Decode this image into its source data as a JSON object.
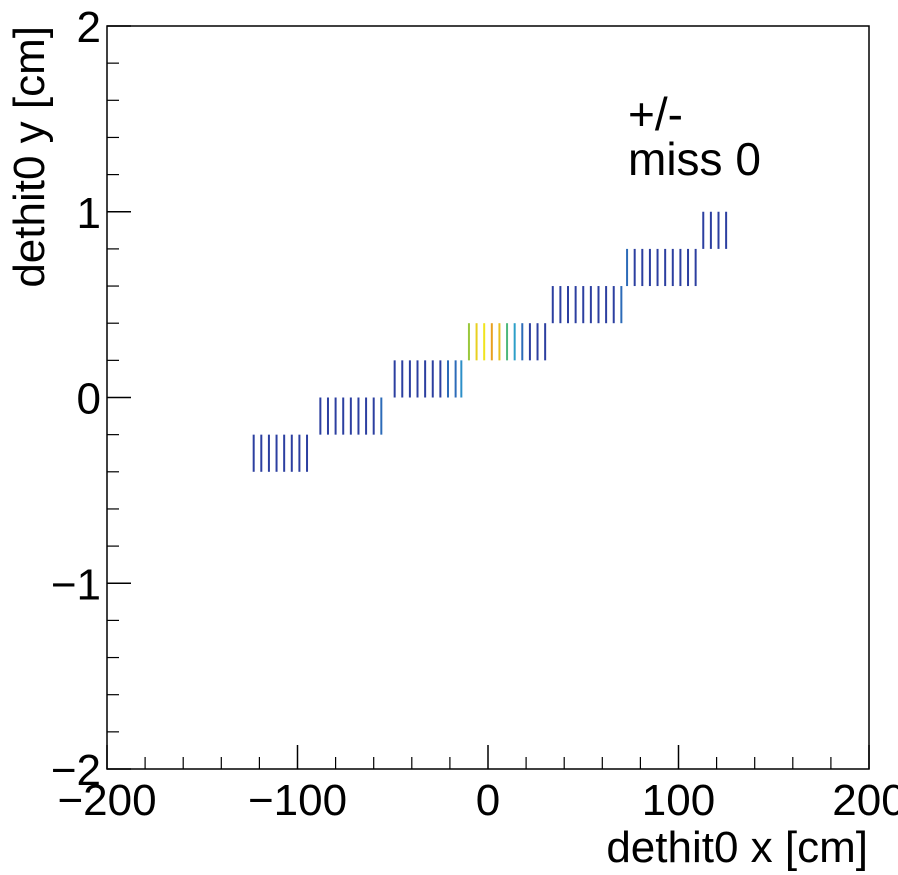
{
  "chart_data": {
    "type": "heatmap",
    "title": "",
    "xlabel": "dethit0 x [cm]",
    "ylabel": "dethit0 y [cm]",
    "xlim": [
      -200,
      200
    ],
    "ylim": [
      -2,
      2
    ],
    "x_ticks": [
      -200,
      -100,
      0,
      100,
      200
    ],
    "y_ticks": [
      -2,
      -1,
      0,
      1,
      2
    ],
    "x_tick_labels": [
      "−200",
      "−100",
      "0",
      "100",
      "200"
    ],
    "y_tick_labels": [
      "−2",
      "−1",
      "0",
      "1",
      "2"
    ],
    "annotations": [
      "+/-",
      "miss 0"
    ],
    "grid": false,
    "legend": "none",
    "cells": [
      {
        "y0": -0.4,
        "y1": -0.2,
        "x": [
          -123,
          -119,
          -115,
          -111,
          -107,
          -103,
          -99,
          -95
        ],
        "colors": [
          "#2c3fa0",
          "#2c3fa0",
          "#2c3fa0",
          "#2c3fa0",
          "#2c3fa0",
          "#2c3fa0",
          "#2c3fa0",
          "#2c3fa0"
        ]
      },
      {
        "y0": -0.2,
        "y1": 0.0,
        "x": [
          -88,
          -84,
          -80,
          -76,
          -72,
          -68,
          -64,
          -60,
          -56
        ],
        "colors": [
          "#2c3fa0",
          "#2c3fa0",
          "#2c3fa0",
          "#2c3fa0",
          "#2c3fa0",
          "#2c3fa0",
          "#2c3fa0",
          "#2c3fa0",
          "#2c6bb8"
        ]
      },
      {
        "y0": 0.0,
        "y1": 0.2,
        "x": [
          -49,
          -45,
          -41,
          -37,
          -33,
          -29,
          -25,
          -21,
          -17,
          -14
        ],
        "colors": [
          "#2c3fa0",
          "#2c3fa0",
          "#2c3fa0",
          "#2c3fa0",
          "#2c3fa0",
          "#2c3fa0",
          "#2c3fa0",
          "#2c6bb8",
          "#2c6bb8",
          "#2c8fc8"
        ]
      },
      {
        "y0": 0.2,
        "y1": 0.4,
        "x": [
          -10,
          -6,
          -2,
          2,
          6,
          10,
          14,
          18,
          22,
          26,
          30
        ],
        "colors": [
          "#9ac83c",
          "#e8d020",
          "#f0e41e",
          "#e8a020",
          "#e8c020",
          "#4cb87c",
          "#2c9fc8",
          "#2c6bb8",
          "#2c3fa0",
          "#2c3fa0",
          "#2c3fa0"
        ]
      },
      {
        "y0": 0.4,
        "y1": 0.6,
        "x": [
          34,
          38,
          42,
          46,
          50,
          54,
          58,
          62,
          66,
          70
        ],
        "colors": [
          "#2c3fa0",
          "#2c3fa0",
          "#2c3fa0",
          "#2c3fa0",
          "#2c3fa0",
          "#2c3fa0",
          "#2c3fa0",
          "#2c3fa0",
          "#2c3fa0",
          "#2c6bb8"
        ]
      },
      {
        "y0": 0.6,
        "y1": 0.8,
        "x": [
          73,
          77,
          81,
          85,
          89,
          93,
          97,
          101,
          105,
          109
        ],
        "colors": [
          "#2c6bb8",
          "#2c3fa0",
          "#2c3fa0",
          "#2c3fa0",
          "#2c3fa0",
          "#2c3fa0",
          "#2c3fa0",
          "#2c3fa0",
          "#2c3fa0",
          "#2c3fa0"
        ]
      },
      {
        "y0": 0.8,
        "y1": 1.0,
        "x": [
          113,
          117,
          121,
          125
        ],
        "colors": [
          "#2c3fa0",
          "#2c3fa0",
          "#2c3fa0",
          "#2c3fa0"
        ]
      }
    ]
  }
}
